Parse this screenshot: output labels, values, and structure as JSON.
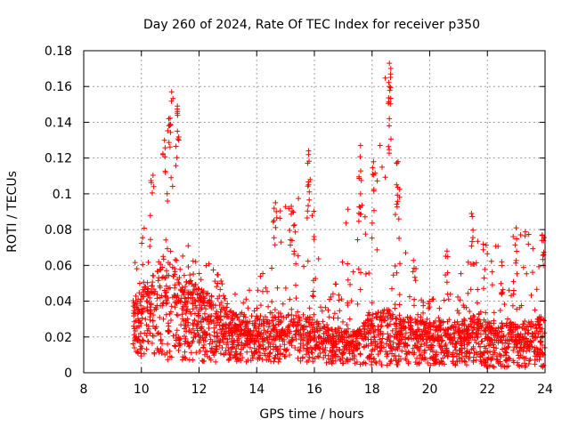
{
  "chart_data": {
    "type": "scatter",
    "title": "Day 260 of 2024, Rate Of TEC Index for receiver p350",
    "xlabel": "GPS time / hours",
    "ylabel": "ROTI / TECUs",
    "xlim": [
      8,
      24
    ],
    "ylim": [
      0,
      0.18
    ],
    "x_ticks": [
      8,
      10,
      12,
      14,
      16,
      18,
      20,
      22,
      24
    ],
    "x_tick_labels": [
      "8",
      "10",
      "12",
      "14",
      "16",
      "18",
      "20",
      "22",
      "24"
    ],
    "y_ticks": [
      0,
      0.02,
      0.04,
      0.06,
      0.08,
      0.1,
      0.12,
      0.14,
      0.16,
      0.18
    ],
    "y_tick_labels": [
      "0",
      "0.02",
      "0.04",
      "0.06",
      "0.08",
      "0.1",
      "0.12",
      "0.14",
      "0.16",
      "0.18"
    ],
    "grid": true,
    "marker": "+",
    "series": [
      {
        "name": "ROTI",
        "color": "#ff0000",
        "data_span_hours": [
          9.7,
          24.0
        ],
        "note": "dense cloud of several thousand points; representative envelope below",
        "envelope": {
          "x": [
            9.7,
            10.0,
            10.5,
            11.0,
            11.5,
            12.0,
            12.5,
            13.0,
            14.0,
            14.7,
            15.3,
            15.7,
            16.5,
            17.5,
            17.8,
            18.5,
            18.7,
            19.0,
            20.0,
            21.0,
            21.5,
            22.0,
            23.0,
            24.0
          ],
          "y_low": [
            0.012,
            0.008,
            0.008,
            0.006,
            0.006,
            0.006,
            0.006,
            0.006,
            0.006,
            0.006,
            0.006,
            0.006,
            0.005,
            0.005,
            0.004,
            0.004,
            0.004,
            0.004,
            0.004,
            0.004,
            0.003,
            0.003,
            0.003,
            0.003
          ],
          "y_typ": [
            0.025,
            0.03,
            0.035,
            0.04,
            0.035,
            0.03,
            0.027,
            0.022,
            0.02,
            0.02,
            0.022,
            0.02,
            0.016,
            0.015,
            0.02,
            0.022,
            0.022,
            0.02,
            0.018,
            0.018,
            0.02,
            0.018,
            0.018,
            0.02
          ],
          "y_high": [
            0.065,
            0.075,
            0.13,
            0.157,
            0.08,
            0.065,
            0.06,
            0.05,
            0.05,
            0.095,
            0.092,
            0.124,
            0.04,
            0.127,
            0.1,
            0.173,
            0.118,
            0.09,
            0.04,
            0.052,
            0.089,
            0.07,
            0.081,
            0.077
          ]
        },
        "peaks": [
          {
            "x": 11.05,
            "y": 0.157
          },
          {
            "x": 11.25,
            "y": 0.149
          },
          {
            "x": 10.95,
            "y": 0.142
          },
          {
            "x": 11.25,
            "y": 0.135
          },
          {
            "x": 10.8,
            "y": 0.13
          },
          {
            "x": 14.65,
            "y": 0.095
          },
          {
            "x": 15.2,
            "y": 0.093
          },
          {
            "x": 15.8,
            "y": 0.124
          },
          {
            "x": 15.8,
            "y": 0.105
          },
          {
            "x": 17.6,
            "y": 0.127
          },
          {
            "x": 17.6,
            "y": 0.1
          },
          {
            "x": 18.05,
            "y": 0.118
          },
          {
            "x": 18.6,
            "y": 0.173
          },
          {
            "x": 18.6,
            "y": 0.16
          },
          {
            "x": 18.6,
            "y": 0.142
          },
          {
            "x": 18.9,
            "y": 0.118
          },
          {
            "x": 18.85,
            "y": 0.105
          },
          {
            "x": 21.45,
            "y": 0.089
          },
          {
            "x": 23.0,
            "y": 0.081
          },
          {
            "x": 23.9,
            "y": 0.077
          },
          {
            "x": 20.6,
            "y": 0.068
          },
          {
            "x": 22.5,
            "y": 0.062
          }
        ]
      }
    ]
  }
}
